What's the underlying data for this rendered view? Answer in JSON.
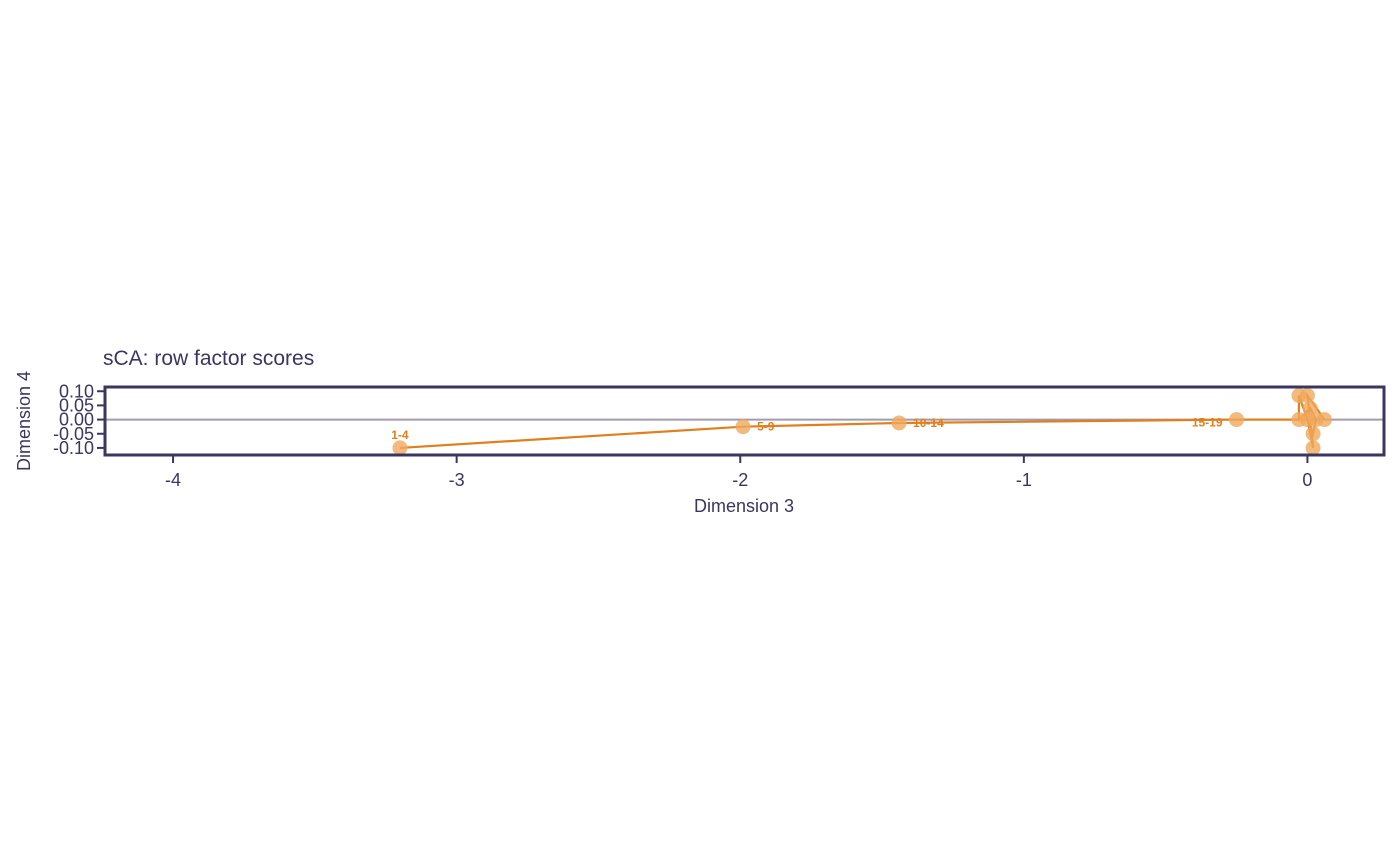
{
  "colors": {
    "axis": "#3b3561",
    "series": "#e07f1b",
    "point": "#f0a95c",
    "zero_line": "#a09cad"
  },
  "chart_data": {
    "type": "scatter",
    "title": "sCA: row factor scores",
    "xlabel": "Dimension 3",
    "ylabel": "Dimension 4",
    "xlim": [
      -4.24,
      0.27
    ],
    "ylim": [
      -0.125,
      0.115
    ],
    "x_ticks": [
      {
        "value": -4,
        "label": "-4"
      },
      {
        "value": -3,
        "label": "-3"
      },
      {
        "value": -2,
        "label": "-2"
      },
      {
        "value": -1,
        "label": "-1"
      },
      {
        "value": 0,
        "label": "0"
      }
    ],
    "y_ticks": [
      {
        "value": 0.1,
        "label": "0.10"
      },
      {
        "value": 0.05,
        "label": "0.05"
      },
      {
        "value": 0.0,
        "label": "0.00"
      },
      {
        "value": -0.05,
        "label": "-0.05"
      },
      {
        "value": -0.1,
        "label": "-0.10"
      }
    ],
    "zero_line": true,
    "points": [
      {
        "x": -3.2,
        "y": -0.1,
        "label": "1-4"
      },
      {
        "x": -1.99,
        "y": -0.025,
        "label": "5-9"
      },
      {
        "x": -1.44,
        "y": -0.012,
        "label": "10-14"
      },
      {
        "x": -0.25,
        "y": 0.0,
        "label": "15-19"
      },
      {
        "x": -0.03,
        "y": 0.085,
        "label": ""
      },
      {
        "x": 0.0,
        "y": 0.085,
        "label": ""
      },
      {
        "x": 0.01,
        "y": 0.04,
        "label": ""
      },
      {
        "x": -0.03,
        "y": 0.0,
        "label": ""
      },
      {
        "x": 0.0,
        "y": 0.0,
        "label": ""
      },
      {
        "x": 0.03,
        "y": 0.0,
        "label": ""
      },
      {
        "x": 0.06,
        "y": 0.0,
        "label": ""
      },
      {
        "x": 0.02,
        "y": -0.05,
        "label": ""
      },
      {
        "x": 0.02,
        "y": -0.1,
        "label": ""
      }
    ],
    "path_order": [
      0,
      1,
      2,
      3,
      8,
      4,
      7,
      6,
      9,
      11,
      8,
      12,
      5,
      10
    ]
  }
}
